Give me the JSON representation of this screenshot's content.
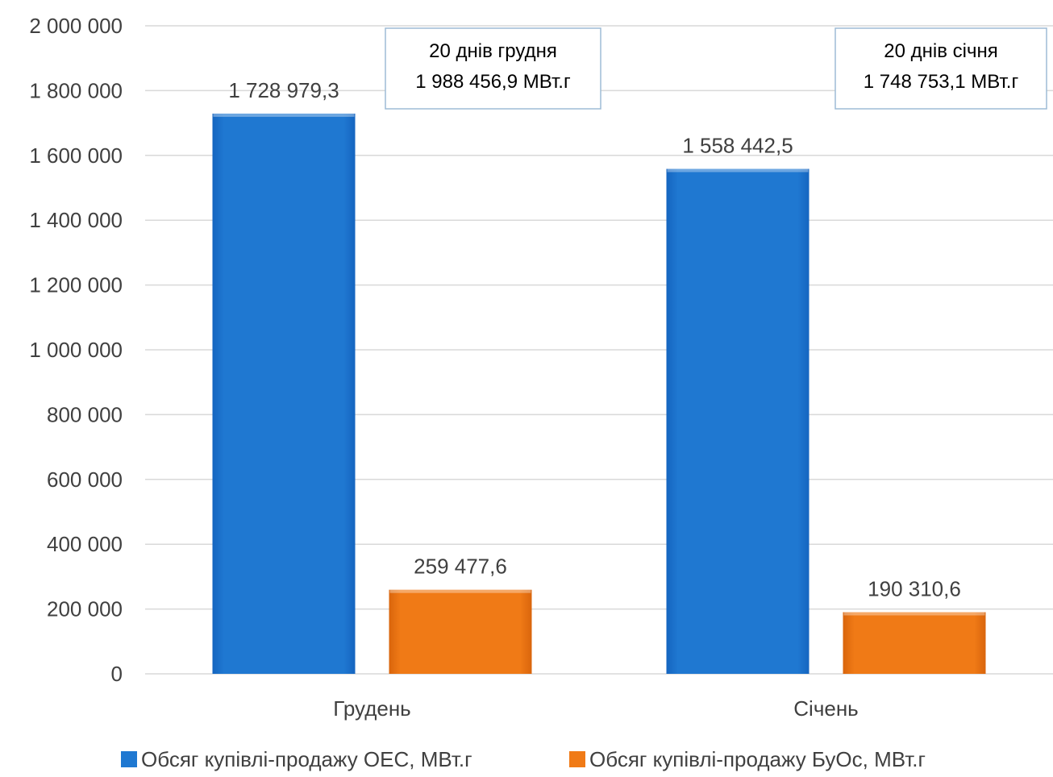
{
  "chart_data": {
    "type": "bar",
    "categories": [
      "Грудень",
      "Січень"
    ],
    "series": [
      {
        "name": "Обсяг купівлі-продажу ОЕС, МВт.г",
        "values": [
          1728979.3,
          1558442.5
        ],
        "labels": [
          "1 728 979,3",
          "1 558 442,5"
        ],
        "color": "#1f78d1"
      },
      {
        "name": "Обсяг купівлі-продажу БуОс, МВт.г",
        "values": [
          259477.6,
          190310.6
        ],
        "labels": [
          "259 477,6",
          "190 310,6"
        ],
        "color": "#f07a16"
      }
    ],
    "ylim": [
      0,
      2000000
    ],
    "yticks": [
      0,
      200000,
      400000,
      600000,
      800000,
      1000000,
      1200000,
      1400000,
      1600000,
      1800000,
      2000000
    ],
    "ytick_labels": [
      "0",
      "200 000",
      "400 000",
      "600 000",
      "800 000",
      "1 000 000",
      "1 200 000",
      "1 400 000",
      "1 600 000",
      "1 800 000",
      "2 000 000"
    ],
    "grid": true,
    "legend": "bottom",
    "annotations": [
      {
        "category": "Грудень",
        "lines": [
          "20 днів грудня",
          "1 988 456,9 МВт.г"
        ]
      },
      {
        "category": "Січень",
        "lines": [
          "20 днів січня",
          "1 748 753,1 МВт.г"
        ]
      }
    ]
  }
}
